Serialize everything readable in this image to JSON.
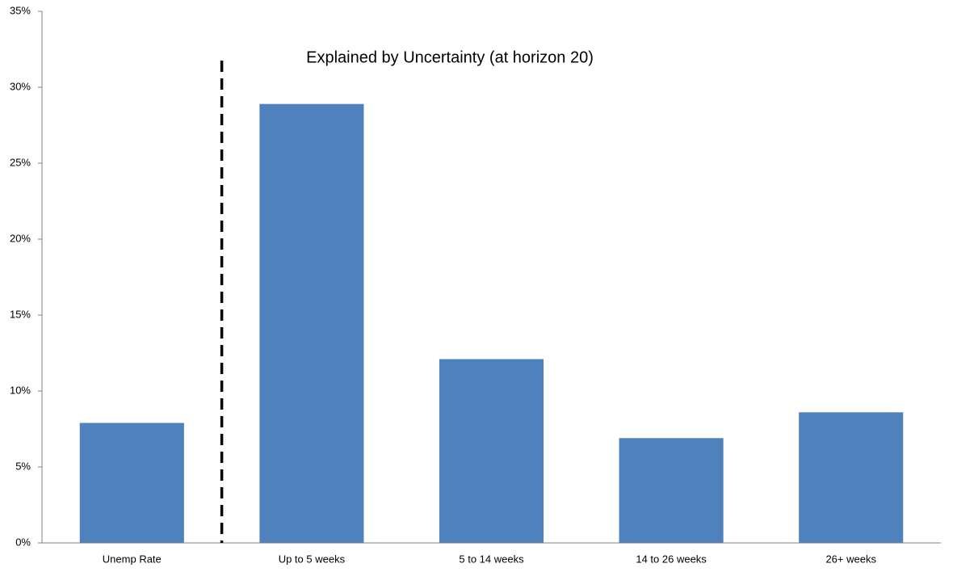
{
  "chart_data": {
    "type": "bar",
    "annotation": "Explained by Uncertainty (at horizon 20)",
    "categories": [
      "Unemp Rate",
      "Up to 5 weeks",
      "5 to 14 weeks",
      "14 to 26 weeks",
      "26+ weeks"
    ],
    "values": [
      7.9,
      28.9,
      12.1,
      6.9,
      8.6
    ],
    "color": "#4f81bd",
    "ylim": [
      0,
      35
    ],
    "yticks": [
      {
        "value": 0,
        "label": "0%"
      },
      {
        "value": 5,
        "label": "5%"
      },
      {
        "value": 10,
        "label": "10%"
      },
      {
        "value": 15,
        "label": "15%"
      },
      {
        "value": 20,
        "label": "20%"
      },
      {
        "value": 25,
        "label": "25%"
      },
      {
        "value": 30,
        "label": "30%"
      },
      {
        "value": 35,
        "label": "35%"
      }
    ],
    "grid": false
  }
}
